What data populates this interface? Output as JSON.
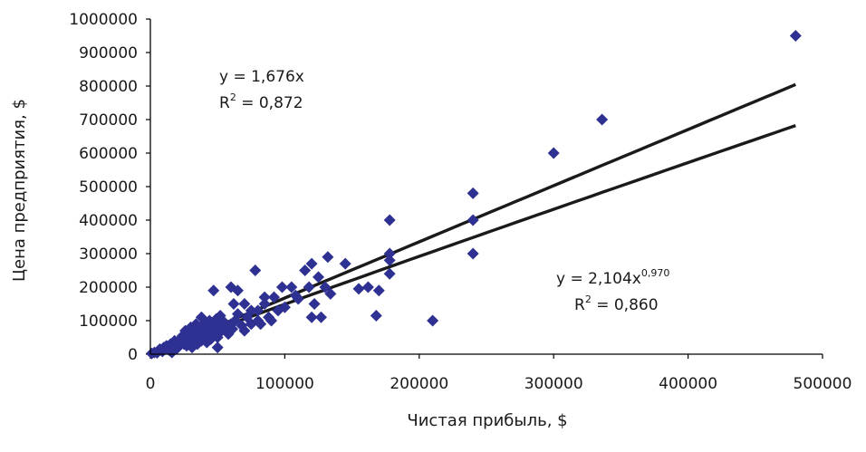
{
  "chart_data": {
    "type": "scatter",
    "xlabel": "Чистая прибыль, $",
    "ylabel": "Цена предприятия, $",
    "xlim": [
      0,
      500000
    ],
    "ylim": [
      0,
      1000000
    ],
    "x_ticks": [
      "0",
      "100000",
      "200000",
      "300000",
      "400000",
      "500000"
    ],
    "y_ticks": [
      "0",
      "100000",
      "200000",
      "300000",
      "400000",
      "500000",
      "600000",
      "700000",
      "800000",
      "900000",
      "1000000"
    ],
    "grid": false,
    "legend": "none",
    "marker_color": "#2e3192",
    "line_color": "#1a1a1a",
    "points": [
      [
        1000,
        2000
      ],
      [
        3000,
        5000
      ],
      [
        5000,
        4000
      ],
      [
        7000,
        15000
      ],
      [
        9000,
        8000
      ],
      [
        10000,
        20000
      ],
      [
        12000,
        25000
      ],
      [
        14000,
        12000
      ],
      [
        15000,
        30000
      ],
      [
        16000,
        5000
      ],
      [
        18000,
        40000
      ],
      [
        20000,
        18000
      ],
      [
        20000,
        35000
      ],
      [
        22000,
        45000
      ],
      [
        24000,
        55000
      ],
      [
        25000,
        30000
      ],
      [
        26000,
        70000
      ],
      [
        27000,
        25000
      ],
      [
        28000,
        60000
      ],
      [
        29000,
        40000
      ],
      [
        30000,
        50000
      ],
      [
        30000,
        80000
      ],
      [
        31000,
        20000
      ],
      [
        32000,
        65000
      ],
      [
        33000,
        45000
      ],
      [
        34000,
        90000
      ],
      [
        35000,
        30000
      ],
      [
        35000,
        60000
      ],
      [
        36000,
        75000
      ],
      [
        37000,
        50000
      ],
      [
        38000,
        40000
      ],
      [
        38000,
        110000
      ],
      [
        39000,
        85000
      ],
      [
        40000,
        55000
      ],
      [
        40000,
        70000
      ],
      [
        41000,
        95000
      ],
      [
        42000,
        35000
      ],
      [
        42000,
        80000
      ],
      [
        43000,
        60000
      ],
      [
        44000,
        100000
      ],
      [
        45000,
        45000
      ],
      [
        45000,
        75000
      ],
      [
        46000,
        90000
      ],
      [
        47000,
        190000
      ],
      [
        48000,
        65000
      ],
      [
        49000,
        105000
      ],
      [
        50000,
        20000
      ],
      [
        50000,
        50000
      ],
      [
        51000,
        85000
      ],
      [
        52000,
        115000
      ],
      [
        53000,
        70000
      ],
      [
        55000,
        95000
      ],
      [
        56000,
        80000
      ],
      [
        58000,
        60000
      ],
      [
        60000,
        90000
      ],
      [
        60000,
        200000
      ],
      [
        61000,
        75000
      ],
      [
        62000,
        150000
      ],
      [
        63000,
        100000
      ],
      [
        65000,
        120000
      ],
      [
        65000,
        190000
      ],
      [
        68000,
        85000
      ],
      [
        70000,
        70000
      ],
      [
        70000,
        150000
      ],
      [
        72000,
        110000
      ],
      [
        75000,
        130000
      ],
      [
        75000,
        90000
      ],
      [
        78000,
        250000
      ],
      [
        80000,
        100000
      ],
      [
        80000,
        130000
      ],
      [
        82000,
        90000
      ],
      [
        85000,
        170000
      ],
      [
        85000,
        150000
      ],
      [
        88000,
        110000
      ],
      [
        90000,
        100000
      ],
      [
        92000,
        170000
      ],
      [
        95000,
        130000
      ],
      [
        98000,
        200000
      ],
      [
        100000,
        140000
      ],
      [
        105000,
        200000
      ],
      [
        108000,
        175000
      ],
      [
        110000,
        165000
      ],
      [
        115000,
        250000
      ],
      [
        118000,
        200000
      ],
      [
        120000,
        270000
      ],
      [
        120000,
        110000
      ],
      [
        122000,
        150000
      ],
      [
        125000,
        230000
      ],
      [
        127000,
        110000
      ],
      [
        130000,
        200000
      ],
      [
        132000,
        290000
      ],
      [
        134000,
        180000
      ],
      [
        145000,
        270000
      ],
      [
        155000,
        195000
      ],
      [
        162000,
        200000
      ],
      [
        168000,
        115000
      ],
      [
        170000,
        190000
      ],
      [
        178000,
        400000
      ],
      [
        178000,
        300000
      ],
      [
        178000,
        280000
      ],
      [
        178000,
        240000
      ],
      [
        210000,
        100000
      ],
      [
        240000,
        480000
      ],
      [
        240000,
        400000
      ],
      [
        240000,
        300000
      ],
      [
        300000,
        600000
      ],
      [
        336000,
        700000
      ],
      [
        480000,
        950000
      ]
    ],
    "trendlines": [
      {
        "kind": "linear",
        "coef": 1.676,
        "x_range": [
          0,
          480000
        ],
        "equation": "y = 1,676x",
        "r2_prefix": "R",
        "r2_sup": "2",
        "r2_value": " = 0,872"
      },
      {
        "kind": "power",
        "coef": 2.104,
        "exponent": 0.97,
        "x_range": [
          0,
          480000
        ],
        "equation_base": "y = 2,104x",
        "equation_sup": "0,970",
        "r2_prefix": "R",
        "r2_sup": "2",
        "r2_value": " = 0,860"
      }
    ]
  }
}
